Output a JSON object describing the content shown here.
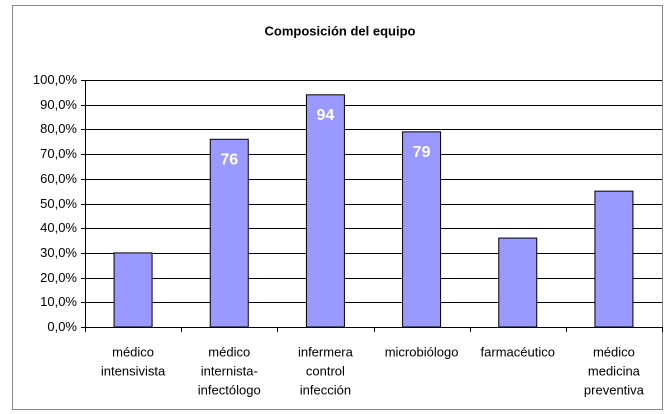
{
  "chart_data": {
    "type": "bar",
    "title": "Composición del equipo",
    "categories": [
      [
        "médico",
        "intensivista"
      ],
      [
        "médico",
        "internista-",
        "infectólogo"
      ],
      [
        "infermera",
        "control",
        "infección"
      ],
      [
        "microbiólogo"
      ],
      [
        "farmacéutico"
      ],
      [
        "médico",
        "medicina",
        "preventiva"
      ]
    ],
    "values": [
      30,
      76,
      94,
      79,
      36,
      55
    ],
    "value_labels": [
      null,
      "76",
      "94",
      "79",
      null,
      null
    ],
    "color": "#9999ff",
    "ylim": [
      0,
      100
    ],
    "yticks": [
      {
        "value": 0,
        "label": "0,0%"
      },
      {
        "value": 10,
        "label": "10,0%"
      },
      {
        "value": 20,
        "label": "20,0%"
      },
      {
        "value": 30,
        "label": "30,0%"
      },
      {
        "value": 40,
        "label": "40,0%"
      },
      {
        "value": 50,
        "label": "50,0%"
      },
      {
        "value": 60,
        "label": "60,0%"
      },
      {
        "value": 70,
        "label": "70,0%"
      },
      {
        "value": 80,
        "label": "80,0%"
      },
      {
        "value": 90,
        "label": "90,0%"
      },
      {
        "value": 100,
        "label": "100,0%"
      }
    ],
    "grid": true
  }
}
